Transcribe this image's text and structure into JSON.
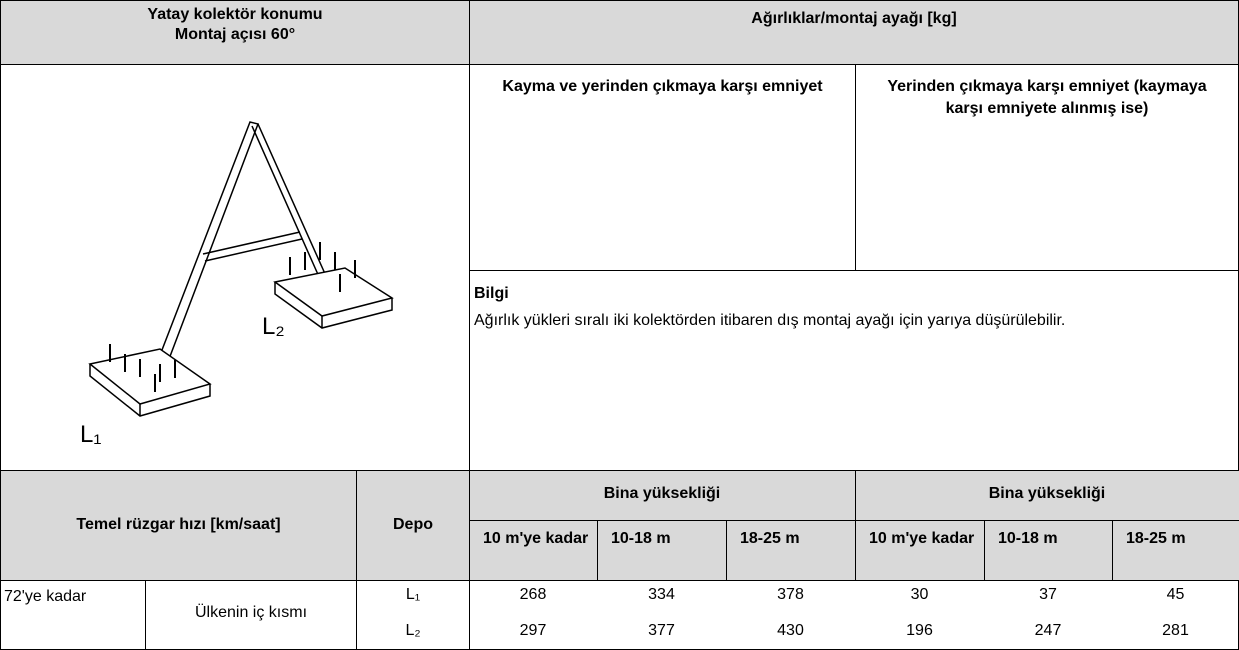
{
  "header": {
    "left_title": "Yatay kolektör konumu",
    "left_subtitle": "Montaj açısı 60°",
    "right_title": "Ağırlıklar/montaj ayağı [kg]"
  },
  "diagram": {
    "labels": [
      "L₂",
      "L₁"
    ]
  },
  "sections": [
    {
      "title": "Kayma ve yerinden çıkmaya karşı emniyet"
    },
    {
      "title": "Yerinden çıkmaya karşı emniyet (kaymaya karşı emniyete alınmış ise)"
    }
  ],
  "info": {
    "title": "Bilgi",
    "text": "Ağırlık yükleri sıralı iki kolektörden itibaren dış montaj ayağı için yarıya düşürülebilir."
  },
  "table": {
    "headers": {
      "wind": "Temel rüzgar hızı [km/saat]",
      "depot": "Depo",
      "group_titles": [
        "Bina yüksekliği",
        "Bina yüksekliği"
      ],
      "columns": [
        "10 m'ye kadar",
        "10-18 m",
        "18-25 m",
        "10 m'ye kadar",
        "10-18 m",
        "18-25 m"
      ]
    },
    "rows": [
      {
        "speed": "72'ye kadar",
        "region": "Ülkenin iç kısmı",
        "depots": [
          "L₁",
          "L₂"
        ],
        "values": [
          [
            268,
            334,
            378,
            30,
            37,
            45
          ],
          [
            297,
            377,
            430,
            196,
            247,
            281
          ]
        ]
      }
    ]
  }
}
